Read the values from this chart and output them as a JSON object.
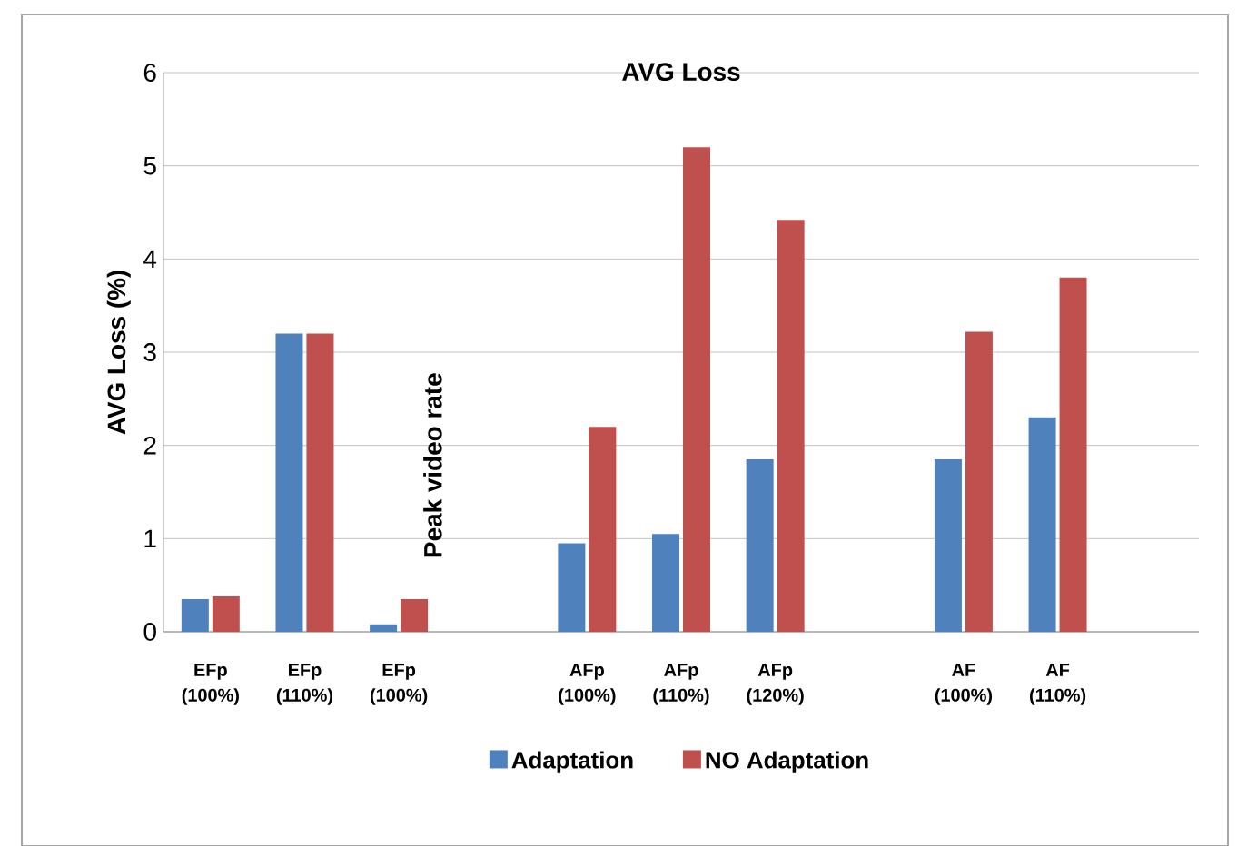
{
  "chart_data": {
    "type": "bar",
    "title": "AVG Loss",
    "ylabel": "AVG Loss (%)",
    "categories": [
      "EFp (100%)",
      "EFp (110%)",
      "EFp (100%)",
      null,
      "AFp (100%)",
      "AFp (110%)",
      "AFp (120%)",
      null,
      "AF (100%)",
      "AF (110%)",
      null
    ],
    "series": [
      {
        "name": "Adaptation",
        "color": "#4f81bd",
        "values": [
          0.35,
          3.2,
          0.08,
          null,
          0.95,
          1.05,
          1.85,
          null,
          1.85,
          2.3,
          null
        ]
      },
      {
        "name": "NO Adaptation",
        "color": "#c0504d",
        "values": [
          0.38,
          3.2,
          0.35,
          null,
          2.2,
          5.2,
          4.42,
          null,
          3.22,
          3.8,
          null
        ]
      }
    ],
    "ylim": [
      0,
      6
    ],
    "yticks": [
      0,
      1,
      2,
      3,
      4,
      5,
      6
    ],
    "grid": "y",
    "legend": "bottom",
    "annotations": [
      "Peak video rate"
    ]
  }
}
